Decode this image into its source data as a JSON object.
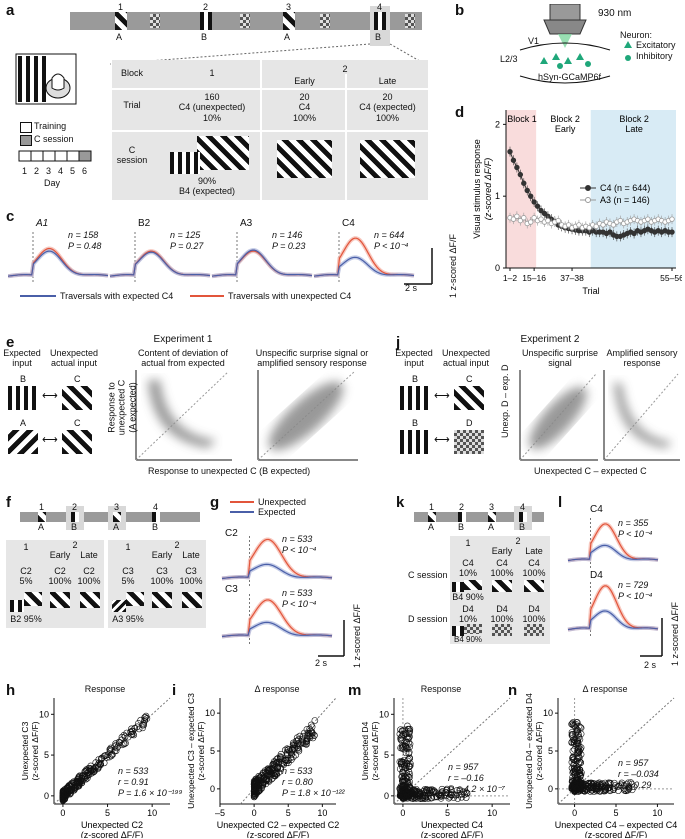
{
  "panels": {
    "a": {
      "label": "a",
      "bar_numbers": [
        "1",
        "2",
        "3",
        "4"
      ],
      "bar_letters": [
        "A",
        "B",
        "A",
        "B"
      ],
      "legend_training": "Training",
      "legend_csession": "C session",
      "day_label": "Day",
      "days": [
        "1",
        "2",
        "3",
        "4",
        "5",
        "6"
      ],
      "table": {
        "block_label": "Block",
        "trial_label": "Trial",
        "csession_label": "C\nsession",
        "block1": "1",
        "block2": "2",
        "early": "Early",
        "late": "Late",
        "col1_trial": "160\nC4 (unexpected)\n10%",
        "col2_trial": "20\nC4\n100%",
        "col3_trial": "20\nC4 (expected)\n100%",
        "col1_expected": "90%\nB4 (expected)"
      }
    },
    "b": {
      "label": "b",
      "wavelength": "930 nm",
      "area": "V1",
      "layer": "L2/3",
      "indicator": "hSyn-GCaMP6f",
      "legend_title": "Neuron:",
      "legend_excitatory": "Excitatory",
      "legend_inhibitory": "Inhibitory",
      "colors": {
        "neuron": "#1fa77a"
      }
    },
    "c": {
      "label": "c",
      "traces": [
        {
          "title": "A1",
          "n": "n = 158",
          "p": "P = 0.48"
        },
        {
          "title": "B2",
          "n": "n = 125",
          "p": "P = 0.27"
        },
        {
          "title": "A3",
          "n": "n = 146",
          "p": "P = 0.23"
        },
        {
          "title": "C4",
          "n": "n = 644",
          "p": "P < 10⁻⁴"
        }
      ],
      "legend_expected": "Traversals with expected C4",
      "legend_unexpected": "Traversals with unexpected C4",
      "scale_time": "2 s",
      "scale_y": "1 z-scored ΔF/F",
      "colors": {
        "expected": "#4a5fa8",
        "unexpected": "#e2553b"
      }
    },
    "d": {
      "label": "d",
      "ylabel": "Visual stimulus response",
      "ylabel2": "(z-scored ΔF/F)",
      "xlabel": "Trial",
      "block1": "Block 1",
      "block2_early": "Block 2\nEarly",
      "block2_late": "Block 2\nLate",
      "legend_c4": "C4 (n = 644)",
      "legend_a3": "A3 (n = 146)",
      "colors": {
        "block1": "#f9dcdc",
        "block2_late": "#d8ebf5",
        "c4": "#333333",
        "a3": "#999999"
      },
      "chart_data": {
        "type": "line",
        "x_ticks": [
          "1–2",
          "15–16",
          "37–38",
          "55–56"
        ],
        "y_ticks": [
          "0",
          "1",
          "2"
        ],
        "ylim": [
          0,
          2.2
        ],
        "series": [
          {
            "name": "C4 (n = 644)",
            "values": [
              1.62,
              1.5,
              1.4,
              1.3,
              1.18,
              1.08,
              1.0,
              0.92,
              0.86,
              0.8,
              0.76,
              0.72,
              0.68,
              0.65,
              0.6,
              0.58,
              0.56,
              0.55,
              0.54,
              0.53,
              0.52,
              0.52,
              0.52,
              0.5,
              0.52,
              0.5,
              0.5,
              0.5,
              0.48,
              0.5,
              0.46,
              0.44,
              0.44,
              0.46,
              0.48,
              0.5,
              0.48,
              0.52,
              0.5,
              0.52,
              0.54,
              0.52,
              0.5,
              0.52,
              0.5,
              0.52,
              0.5,
              0.5
            ]
          },
          {
            "name": "A3 (n = 146)",
            "values": [
              0.7,
              0.68,
              0.72,
              0.66,
              0.7,
              0.62,
              0.64,
              0.7,
              0.66,
              0.68,
              0.64,
              0.66,
              0.62,
              0.64,
              0.66,
              0.6,
              0.58,
              0.6,
              0.56,
              0.58,
              0.6,
              0.56,
              0.58,
              0.56,
              0.6,
              0.58,
              0.62,
              0.6,
              0.64,
              0.62,
              0.6,
              0.64,
              0.66,
              0.62,
              0.64,
              0.66,
              0.68,
              0.66,
              0.64,
              0.66,
              0.68,
              0.64,
              0.66,
              0.68,
              0.66,
              0.64,
              0.66,
              0.68
            ]
          }
        ]
      }
    },
    "e": {
      "label": "e",
      "experiment": "Experiment 1",
      "expected_input": "Expected\ninput",
      "unexpected_actual": "Unexpected\nactual input",
      "letter_b": "B",
      "letter_c": "C",
      "letter_a": "A",
      "letter_c2": "C",
      "title1": "Content of deviation of\nactual from expected",
      "title2": "Unspecific surprise signal or\namplified sensory response",
      "ylabel": "Response to\nunexpected C\n(A expected)",
      "xlabel": "Response to unexpected C (B expected)"
    },
    "j": {
      "label": "j",
      "experiment": "Experiment 2",
      "expected_input": "Expected\ninput",
      "unexpected_actual": "Unexpected\nactual input",
      "letter_b": "B",
      "letter_c": "C",
      "letter_b2": "B",
      "letter_d": "D",
      "title1": "Unspecific surprise\nsignal",
      "title2": "Amplified sensory\nresponse",
      "ylabel": "Unexp. D – exp. D",
      "xlabel": "Unexpected C – expected C"
    },
    "f": {
      "label": "f",
      "bar_numbers": [
        "1",
        "2",
        "3",
        "4"
      ],
      "bar_letters": [
        "A",
        "B",
        "A",
        "B"
      ],
      "block1": "1",
      "block2": "2",
      "early": "Early",
      "late": "Late",
      "c2_cells": [
        "C2\n5%",
        "C2\n100%",
        "C2\n100%"
      ],
      "c3_cells": [
        "C3\n5%",
        "C3\n100%",
        "C3\n100%"
      ],
      "b2": "B2 95%",
      "a3": "A3 95%"
    },
    "g": {
      "label": "g",
      "legend_unexpected": "Unexpected",
      "legend_expected": "Expected",
      "traces": [
        {
          "title": "C2",
          "n": "n = 533",
          "p": "P < 10⁻⁴"
        },
        {
          "title": "C3",
          "n": "n = 533",
          "p": "P < 10⁻⁴"
        }
      ],
      "scale_time": "2 s",
      "scale_y": "1 z-scored ΔF/F"
    },
    "k": {
      "label": "k",
      "bar_numbers": [
        "1",
        "2",
        "3",
        "4"
      ],
      "bar_letters": [
        "A",
        "B",
        "A",
        "B"
      ],
      "block1": "1",
      "block2": "2",
      "early": "Early",
      "late": "Late",
      "c_session": "C session",
      "d_session": "D session",
      "c_cells": [
        "C4\n10%",
        "C4\n100%",
        "C4\n100%"
      ],
      "d_cells": [
        "D4\n10%",
        "D4\n100%",
        "D4\n100%"
      ],
      "b4a": "B4 90%",
      "b4b": "B4 90%"
    },
    "l": {
      "label": "l",
      "traces": [
        {
          "title": "C4",
          "n": "n = 355",
          "p": "P < 10⁻⁴"
        },
        {
          "title": "D4",
          "n": "n = 729",
          "p": "P < 10⁻⁴"
        }
      ],
      "scale_time": "2 s",
      "scale_y": "1 z-scored ΔF/F"
    },
    "h": {
      "label": "h",
      "title": "Response",
      "ylabel": "Unexpected C3\n(z-scored ΔF/F)",
      "xlabel": "Unexpected C2\n(z-scored ΔF/F)",
      "n": "n = 533",
      "r": "r = 0.91",
      "p": "P = 1.6 × 10⁻¹⁹⁹",
      "x_ticks": [
        "0",
        "5",
        "10"
      ],
      "y_ticks": [
        "0",
        "5",
        "10"
      ]
    },
    "i": {
      "label": "i",
      "title": "Δ response",
      "ylabel": "Unexpected C3 – expected C3\n(z-scored ΔF/F)",
      "xlabel": "Unexpected C2 – expected C2\n(z-scored ΔF/F)",
      "n": "n = 533",
      "r": "r = 0.80",
      "p": "P = 1.8 × 10⁻¹²²",
      "x_ticks": [
        "–5",
        "0",
        "5",
        "10"
      ],
      "y_ticks": [
        "0",
        "5",
        "10"
      ]
    },
    "m": {
      "label": "m",
      "title": "Response",
      "ylabel": "Unexpected D4\n(z-scored ΔF/F)",
      "xlabel": "Unexpected C4\n(z-scored ΔF/F)",
      "n": "n = 957",
      "r": "r = –0.16",
      "p": "P = 4.2 × 10⁻⁷",
      "x_ticks": [
        "0",
        "5",
        "10"
      ],
      "y_ticks": [
        "0",
        "5",
        "10"
      ]
    },
    "n": {
      "label": "n",
      "title": "Δ response",
      "ylabel": "Unexpected D4 – expected D4\n(z-scored ΔF/F)",
      "xlabel": "Unexpected C4 – expected C4\n(z-scored ΔF/F)",
      "n": "n = 957",
      "r": "r = –0.034",
      "p": "P = 0.29",
      "x_ticks": [
        "0",
        "5",
        "10"
      ],
      "y_ticks": [
        "0",
        "5",
        "10"
      ]
    }
  }
}
